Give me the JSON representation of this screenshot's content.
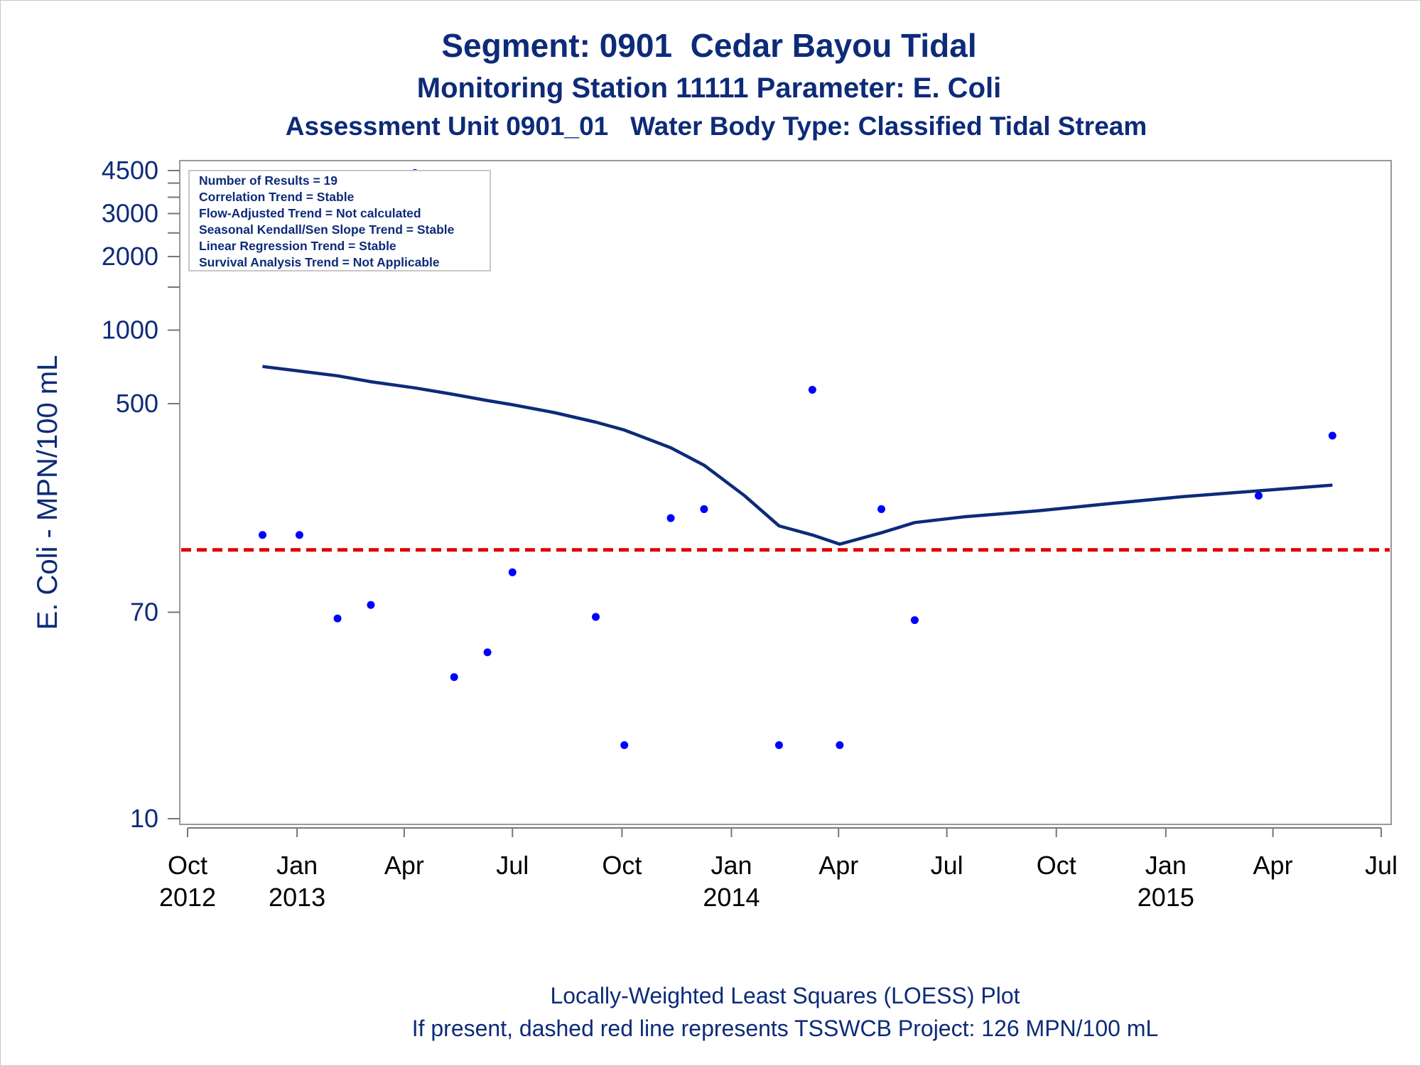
{
  "chart_data": {
    "type": "scatter",
    "title": "Segment: 0901  Cedar Bayou Tidal",
    "subtitle": "Monitoring Station 11111 Parameter: E. Coli",
    "subtitle2": "Assessment Unit 0901_01   Water Body Type: Classified Tidal Stream",
    "ylabel": "E. Coli - MPN/100 mL",
    "yscale": "log",
    "ylim": [
      10,
      4500
    ],
    "xlim": [
      "2012-09-24",
      "2015-07-10"
    ],
    "grid": false,
    "y_ticks": [
      {
        "value": 10,
        "label": "10"
      },
      {
        "value": 70,
        "label": "70"
      },
      {
        "value": 500,
        "label": "500"
      },
      {
        "value": 1000,
        "label": "1000"
      },
      {
        "value": 2000,
        "label": "2000"
      },
      {
        "value": 3000,
        "label": "3000"
      },
      {
        "value": 4500,
        "label": "4500"
      }
    ],
    "y_minor_ticks": [
      1500,
      2500,
      3500,
      4000
    ],
    "x_ticks": [
      {
        "date": "2012-10-01",
        "label": [
          "Oct",
          "2012"
        ]
      },
      {
        "date": "2013-01-01",
        "label": [
          "Jan",
          "2013"
        ]
      },
      {
        "date": "2013-04-01",
        "label": [
          "Apr"
        ]
      },
      {
        "date": "2013-07-01",
        "label": [
          "Jul"
        ]
      },
      {
        "date": "2013-10-01",
        "label": [
          "Oct"
        ]
      },
      {
        "date": "2014-01-01",
        "label": [
          "Jan",
          "2014"
        ]
      },
      {
        "date": "2014-04-01",
        "label": [
          "Apr"
        ]
      },
      {
        "date": "2014-07-01",
        "label": [
          "Jul"
        ]
      },
      {
        "date": "2014-10-01",
        "label": [
          "Oct"
        ]
      },
      {
        "date": "2015-01-01",
        "label": [
          "Jan",
          "2015"
        ]
      },
      {
        "date": "2015-04-01",
        "label": [
          "Apr"
        ]
      },
      {
        "date": "2015-07-01",
        "label": [
          "Jul"
        ]
      }
    ],
    "points": [
      {
        "date": "2012-12-03",
        "value": 145
      },
      {
        "date": "2013-01-03",
        "value": 145
      },
      {
        "date": "2013-02-04",
        "value": 66
      },
      {
        "date": "2013-03-04",
        "value": 75
      },
      {
        "date": "2013-04-10",
        "value": 4400
      },
      {
        "date": "2013-05-13",
        "value": 38
      },
      {
        "date": "2013-06-10",
        "value": 48
      },
      {
        "date": "2013-07-01",
        "value": 102
      },
      {
        "date": "2013-09-09",
        "value": 67
      },
      {
        "date": "2013-10-03",
        "value": 20
      },
      {
        "date": "2013-11-11",
        "value": 170
      },
      {
        "date": "2013-12-09",
        "value": 185
      },
      {
        "date": "2014-02-10",
        "value": 20
      },
      {
        "date": "2014-03-10",
        "value": 570
      },
      {
        "date": "2014-04-02",
        "value": 20
      },
      {
        "date": "2014-05-07",
        "value": 185
      },
      {
        "date": "2014-06-04",
        "value": 65
      },
      {
        "date": "2015-03-20",
        "value": 210
      },
      {
        "date": "2015-05-21",
        "value": 370
      }
    ],
    "series": [
      {
        "type": "line",
        "points": [
          {
            "date": "2012-12-03",
            "value": 710
          },
          {
            "date": "2013-01-03",
            "value": 680
          },
          {
            "date": "2013-02-04",
            "value": 650
          },
          {
            "date": "2013-03-04",
            "value": 615
          },
          {
            "date": "2013-04-10",
            "value": 580
          },
          {
            "date": "2013-05-13",
            "value": 545
          },
          {
            "date": "2013-06-10",
            "value": 515
          },
          {
            "date": "2013-07-01",
            "value": 495
          },
          {
            "date": "2013-08-05",
            "value": 460
          },
          {
            "date": "2013-09-09",
            "value": 420
          },
          {
            "date": "2013-10-03",
            "value": 390
          },
          {
            "date": "2013-11-11",
            "value": 330
          },
          {
            "date": "2013-12-09",
            "value": 280
          },
          {
            "date": "2014-01-12",
            "value": 210
          },
          {
            "date": "2014-02-10",
            "value": 158
          },
          {
            "date": "2014-03-10",
            "value": 145
          },
          {
            "date": "2014-04-02",
            "value": 133
          },
          {
            "date": "2014-05-07",
            "value": 148
          },
          {
            "date": "2014-06-04",
            "value": 163
          },
          {
            "date": "2014-07-15",
            "value": 172
          },
          {
            "date": "2014-09-15",
            "value": 182
          },
          {
            "date": "2014-11-15",
            "value": 195
          },
          {
            "date": "2015-01-15",
            "value": 208
          },
          {
            "date": "2015-03-20",
            "value": 220
          },
          {
            "date": "2015-05-21",
            "value": 232
          }
        ]
      }
    ],
    "reference_line": {
      "value": 126
    }
  },
  "stats_box": [
    "Number of Results = 19",
    "Correlation Trend = Stable",
    "Flow-Adjusted Trend = Not calculated",
    "Seasonal Kendall/Sen Slope Trend = Stable",
    "Linear Regression Trend = Stable",
    "Survival Analysis Trend = Not Applicable"
  ],
  "footer": [
    "Locally-Weighted Least Squares (LOESS) Plot",
    "If present, dashed red line represents TSSWCB Project: 126 MPN/100 mL"
  ],
  "colors": {
    "text": "#0d2b78",
    "points": "#0000ff",
    "loess": "#0d2b78",
    "reference": "#dd0000",
    "frame": "#999999"
  }
}
